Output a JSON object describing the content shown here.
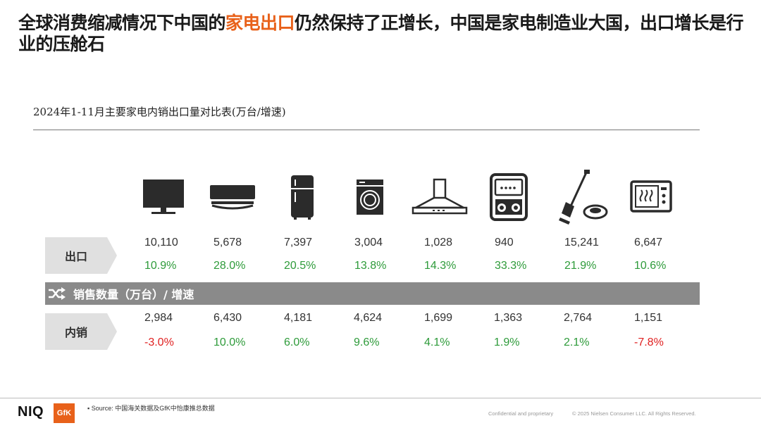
{
  "header": {
    "title_part1": "全球消费缩减情况下中国的",
    "title_highlight": "家电出口",
    "title_part2": "仍然保持了正增长，中国是家电制造业大国，出口增长是行业的压舱石"
  },
  "table": {
    "subtitle": "2024年1-11月主要家电内销出口量对比表(万台/增速)",
    "appliance_icons": [
      "tv-icon",
      "air-conditioner-icon",
      "refrigerator-icon",
      "washing-machine-icon",
      "range-hood-icon",
      "water-heater-icon",
      "vacuum-cleaner-icon",
      "microwave-icon"
    ],
    "export": {
      "label": "出口",
      "volumes": [
        "10,110",
        "5,678",
        "7,397",
        "3,004",
        "1,028",
        "940",
        "15,241",
        "6,647"
      ],
      "growth": [
        "10.9%",
        "28.0%",
        "20.5%",
        "13.8%",
        "14.3%",
        "33.3%",
        "21.9%",
        "10.6%"
      ]
    },
    "band_label": "销售数量（万台）/ 增速",
    "domestic": {
      "label": "内销",
      "volumes": [
        "2,984",
        "6,430",
        "4,181",
        "4,624",
        "1,699",
        "1,363",
        "2,764",
        "1,151"
      ],
      "growth": [
        "-3.0%",
        "10.0%",
        "6.0%",
        "9.6%",
        "4.1%",
        "1.9%",
        "2.1%",
        "-7.8%"
      ]
    }
  },
  "colors": {
    "highlight": "#e8611a",
    "positive": "#2e9b3a",
    "negative": "#e02020",
    "band": "#8a8a8a",
    "label_bg": "#e0e0e0"
  },
  "footer": {
    "logo_niq": "NIQ",
    "logo_gfk": "GfK",
    "source": "Source: 中国海关数据及GfK中怡康推总数据",
    "confidential": "Confidential and proprietary",
    "copyright": "© 2025 Nielsen Consumer LLC. All Rights Reserved."
  }
}
